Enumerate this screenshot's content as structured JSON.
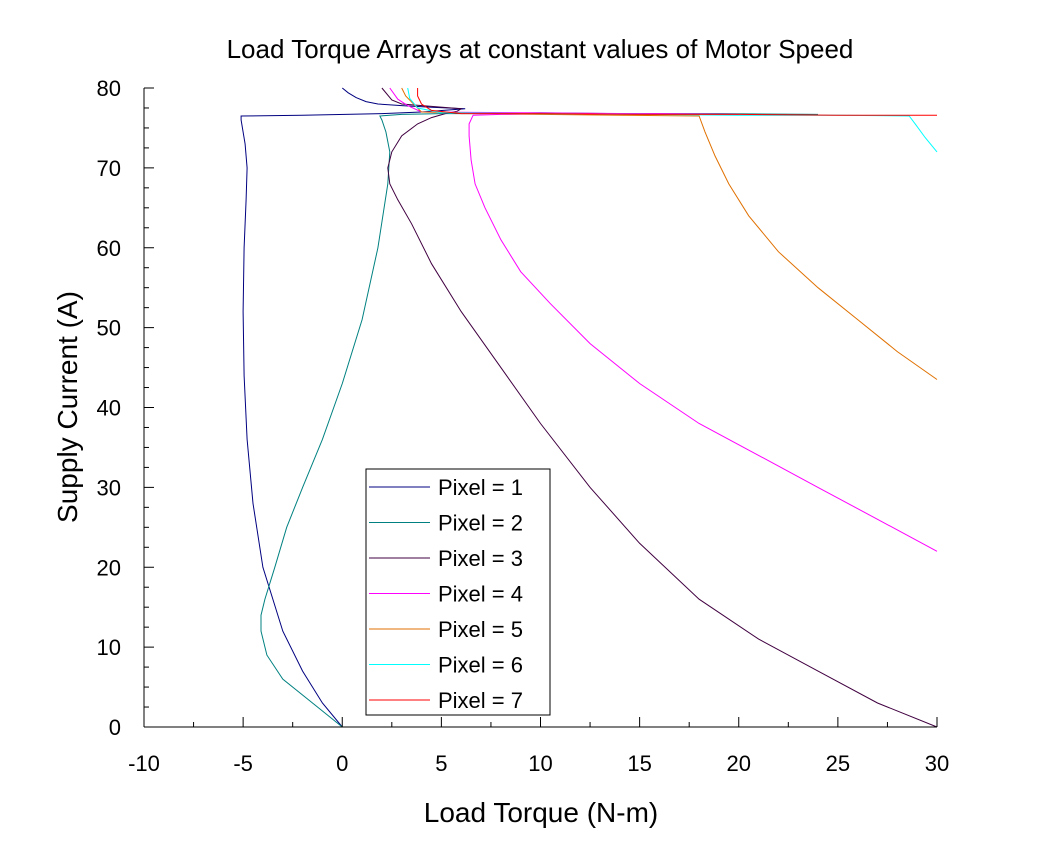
{
  "chart_data": {
    "type": "line",
    "title": "Load Torque Arrays at constant values of Motor Speed",
    "xlabel": "Load Torque (N-m)",
    "ylabel": "Supply Current (A)",
    "xlim": [
      -10,
      30
    ],
    "ylim": [
      0,
      80
    ],
    "xticks": [
      "-10",
      "-5",
      "0",
      "5",
      "10",
      "15",
      "20",
      "25",
      "30"
    ],
    "yticks": [
      "0",
      "10",
      "20",
      "30",
      "40",
      "50",
      "60",
      "70",
      "80"
    ],
    "grid": false,
    "legend_position": "lower-left-center",
    "series": [
      {
        "name": "Pixel = 1",
        "color": "#000080",
        "x": [
          0,
          -1,
          -2,
          -3,
          -4,
          -4.5,
          -4.8,
          -4.95,
          -5,
          -4.95,
          -4.85,
          -4.8,
          -4.9,
          -5.1,
          -5.1,
          -2,
          2,
          4,
          6.2,
          4.5,
          3,
          1.8,
          1.2,
          0.7,
          0.3,
          0
        ],
        "y": [
          0,
          3,
          7,
          12,
          20,
          28,
          36,
          44,
          52,
          60,
          66,
          70,
          73,
          76,
          76.5,
          76.6,
          76.8,
          77,
          77.4,
          77.6,
          77.8,
          78,
          78.3,
          78.8,
          79.4,
          80
        ]
      },
      {
        "name": "Pixel = 2",
        "color": "#008080",
        "x": [
          0,
          -1.5,
          -3,
          -3.8,
          -4.1,
          -4.1,
          -3.9,
          -3.4,
          -2.8,
          -2,
          -1,
          0,
          1,
          1.8,
          2.3,
          2.4,
          2.2,
          2,
          1.9,
          3,
          5,
          7,
          10,
          14,
          19,
          24
        ],
        "y": [
          0,
          3,
          6,
          9,
          12,
          14,
          16,
          20,
          25,
          30,
          36,
          43,
          51,
          60,
          68,
          72,
          74.5,
          76,
          76.5,
          76.7,
          76.8,
          76.8,
          76.9,
          76.8,
          76.8,
          76.7
        ]
      },
      {
        "name": "Pixel = 3",
        "color": "#400040",
        "x": [
          30,
          27,
          24,
          21,
          18,
          15,
          12.5,
          10,
          8,
          6,
          4.5,
          3.5,
          2.8,
          2.4,
          2.3,
          2.5,
          3,
          3.8,
          4.5,
          5.2,
          5.8,
          6,
          4.5,
          3,
          2.5,
          2
        ],
        "y": [
          0,
          3,
          7,
          11,
          16,
          23,
          30,
          38,
          45,
          52,
          58,
          63,
          66,
          68,
          70,
          72,
          74,
          75.5,
          76.3,
          76.8,
          77.1,
          77.4,
          77.7,
          78,
          78.5,
          80
        ]
      },
      {
        "name": "Pixel = 4",
        "color": "#ff00ff",
        "x": [
          30,
          27,
          24,
          21,
          18,
          15,
          12.5,
          10.5,
          9,
          8,
          7.2,
          6.7,
          6.5,
          6.4,
          6.4,
          6.6,
          8,
          12,
          16,
          20,
          4,
          3.3,
          2.8,
          2.4
        ],
        "y": [
          22,
          26,
          30,
          34,
          38,
          43,
          48,
          53,
          57,
          61,
          65,
          68,
          71,
          74,
          75.5,
          76.6,
          76.7,
          76.8,
          76.8,
          76.7,
          77,
          77.8,
          78.6,
          80
        ]
      },
      {
        "name": "Pixel = 5",
        "color": "#e07000",
        "x": [
          30,
          28,
          26,
          24,
          22,
          20.5,
          19.5,
          18.8,
          18.3,
          18,
          14,
          10,
          8,
          6,
          4,
          3.6,
          3.2,
          3
        ],
        "y": [
          43.5,
          47,
          51,
          55,
          59.5,
          64,
          68,
          71.5,
          74.5,
          76.5,
          76.6,
          76.7,
          76.8,
          76.9,
          77,
          78,
          79,
          80
        ]
      },
      {
        "name": "Pixel = 6",
        "color": "#00ffff",
        "x": [
          30,
          29.4,
          28.9,
          28.6,
          25,
          20,
          15,
          10,
          5,
          3.8,
          3.4,
          3.3
        ],
        "y": [
          72,
          73.8,
          75.5,
          76.5,
          76.6,
          76.6,
          76.7,
          76.8,
          76.9,
          77.5,
          78.7,
          80
        ]
      },
      {
        "name": "Pixel = 7",
        "color": "#ff0000",
        "x": [
          30,
          25,
          20,
          15,
          10,
          6,
          4.5,
          4,
          3.8,
          3.8
        ],
        "y": [
          76.6,
          76.6,
          76.7,
          76.7,
          76.8,
          76.8,
          77.2,
          78,
          79,
          80
        ]
      }
    ]
  }
}
